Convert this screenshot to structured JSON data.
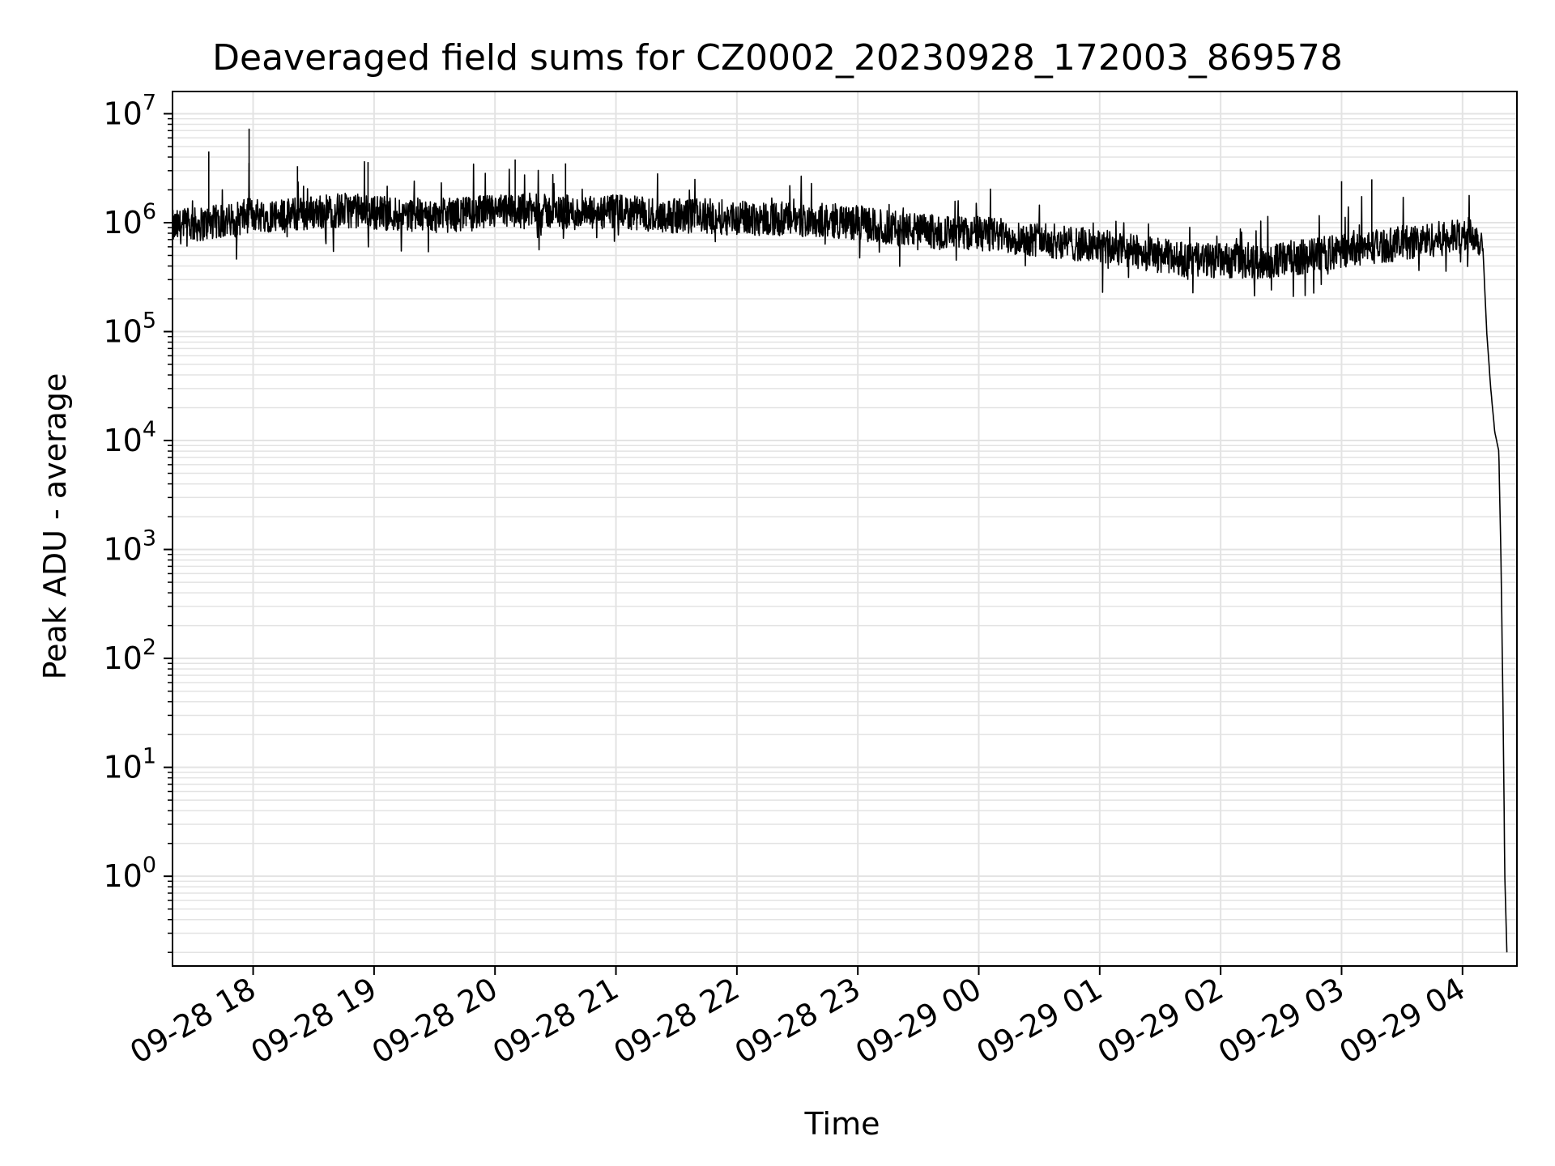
{
  "chart_data": {
    "type": "line",
    "title": "Deaveraged field sums for CZ0002_20230928_172003_869578",
    "xlabel": "Time",
    "ylabel": "Peak ADU - average",
    "yscale": "log",
    "ylim": [
      0.15,
      16000000
    ],
    "xlim": [
      "2023-09-28 17:20",
      "2023-09-29 04:27"
    ],
    "grid": true,
    "line_color": "#000000",
    "grid_color": "#e3e3e3",
    "x_ticks": [
      {
        "value": "2023-09-28 18:00",
        "label": "09-28 18"
      },
      {
        "value": "2023-09-28 19:00",
        "label": "09-28 19"
      },
      {
        "value": "2023-09-28 20:00",
        "label": "09-28 20"
      },
      {
        "value": "2023-09-28 21:00",
        "label": "09-28 21"
      },
      {
        "value": "2023-09-28 22:00",
        "label": "09-28 22"
      },
      {
        "value": "2023-09-28 23:00",
        "label": "09-28 23"
      },
      {
        "value": "2023-09-29 00:00",
        "label": "09-29 00"
      },
      {
        "value": "2023-09-29 01:00",
        "label": "09-29 01"
      },
      {
        "value": "2023-09-29 02:00",
        "label": "09-29 02"
      },
      {
        "value": "2023-09-29 03:00",
        "label": "09-29 03"
      },
      {
        "value": "2023-09-29 04:00",
        "label": "09-29 04"
      }
    ],
    "y_ticks": [
      {
        "value": 1,
        "base": "10",
        "exp": "0"
      },
      {
        "value": 10,
        "base": "10",
        "exp": "1"
      },
      {
        "value": 100,
        "base": "10",
        "exp": "2"
      },
      {
        "value": 1000,
        "base": "10",
        "exp": "3"
      },
      {
        "value": 10000,
        "base": "10",
        "exp": "4"
      },
      {
        "value": 100000,
        "base": "10",
        "exp": "5"
      },
      {
        "value": 1000000,
        "base": "10",
        "exp": "6"
      },
      {
        "value": 10000000,
        "base": "10",
        "exp": "7"
      }
    ],
    "series": [
      {
        "x": [
          "2023-09-28 17:20",
          "2023-09-28 17:30",
          "2023-09-28 17:40",
          "2023-09-28 17:50",
          "2023-09-28 18:00",
          "2023-09-28 18:15",
          "2023-09-28 18:30",
          "2023-09-28 18:45",
          "2023-09-28 19:00",
          "2023-09-28 19:15",
          "2023-09-28 19:30",
          "2023-09-28 19:45",
          "2023-09-28 20:00",
          "2023-09-28 20:15",
          "2023-09-28 20:30",
          "2023-09-28 20:45",
          "2023-09-28 21:00",
          "2023-09-28 21:15",
          "2023-09-28 21:30",
          "2023-09-28 21:45",
          "2023-09-28 22:00",
          "2023-09-28 22:15",
          "2023-09-28 22:30",
          "2023-09-28 22:45",
          "2023-09-28 23:00",
          "2023-09-28 23:15",
          "2023-09-28 23:30",
          "2023-09-28 23:45",
          "2023-09-29 00:00",
          "2023-09-29 00:15",
          "2023-09-29 00:30",
          "2023-09-29 00:45",
          "2023-09-29 01:00",
          "2023-09-29 01:15",
          "2023-09-29 01:30",
          "2023-09-29 01:45",
          "2023-09-29 02:00",
          "2023-09-29 02:15",
          "2023-09-29 02:30",
          "2023-09-29 02:45",
          "2023-09-29 03:00",
          "2023-09-29 03:15",
          "2023-09-29 03:30",
          "2023-09-29 03:45",
          "2023-09-29 04:00",
          "2023-09-29 04:05",
          "2023-09-29 04:10",
          "2023-09-29 04:12",
          "2023-09-29 04:14",
          "2023-09-29 04:16",
          "2023-09-29 04:18",
          "2023-09-29 04:19",
          "2023-09-29 04:20",
          "2023-09-29 04:21",
          "2023-09-29 04:22"
        ],
        "y": [
          900000,
          950000,
          1000000,
          1050000,
          1200000,
          1150000,
          1250000,
          1300000,
          1250000,
          1200000,
          1150000,
          1200000,
          1250000,
          1300000,
          1250000,
          1200000,
          1250000,
          1200000,
          1150000,
          1150000,
          1100000,
          1100000,
          1050000,
          1050000,
          1000000,
          900000,
          850000,
          800000,
          800000,
          750000,
          700000,
          650000,
          600000,
          550000,
          500000,
          450000,
          450000,
          430000,
          450000,
          500000,
          550000,
          600000,
          650000,
          700000,
          750000,
          800000,
          650000,
          100000,
          30000,
          12000,
          8000,
          1000,
          50,
          1,
          0.2
        ]
      }
    ],
    "spikes": [
      {
        "x": "2023-09-28 17:38",
        "y": 4500000
      },
      {
        "x": "2023-09-28 17:58",
        "y": 7300000
      },
      {
        "x": "2023-09-28 18:22",
        "y": 3300000
      },
      {
        "x": "2023-09-28 18:57",
        "y": 3600000
      },
      {
        "x": "2023-09-28 20:10",
        "y": 3800000
      },
      {
        "x": "2023-09-28 20:35",
        "y": 3500000
      },
      {
        "x": "2023-09-29 03:00",
        "y": 2400000
      },
      {
        "x": "2023-09-29 03:15",
        "y": 2500000
      }
    ]
  }
}
